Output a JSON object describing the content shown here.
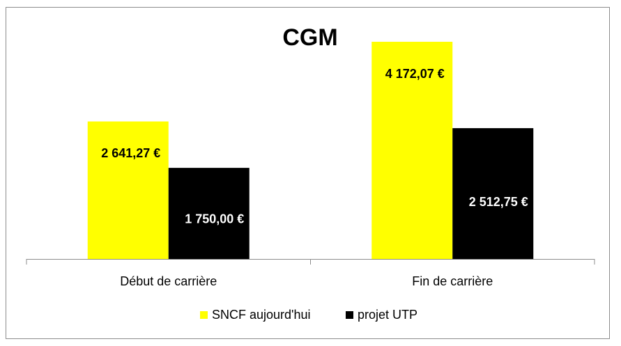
{
  "chart_data": {
    "type": "bar",
    "title": "CGM",
    "categories": [
      "Début de carrière",
      "Fin de carrière"
    ],
    "series": [
      {
        "name": "SNCF aujourd'hui",
        "color": "#ffff00",
        "values": [
          2641.27,
          4172.07
        ],
        "value_labels": [
          "2 641,27 €",
          "4 172,07 €"
        ],
        "label_color": "#000000"
      },
      {
        "name": "projet UTP",
        "color": "#000000",
        "values": [
          1750.0,
          2512.75
        ],
        "value_labels": [
          "1 750,00 €",
          "2 512,75 €"
        ],
        "label_color": "#ffffff"
      }
    ],
    "legend": "bottom"
  }
}
